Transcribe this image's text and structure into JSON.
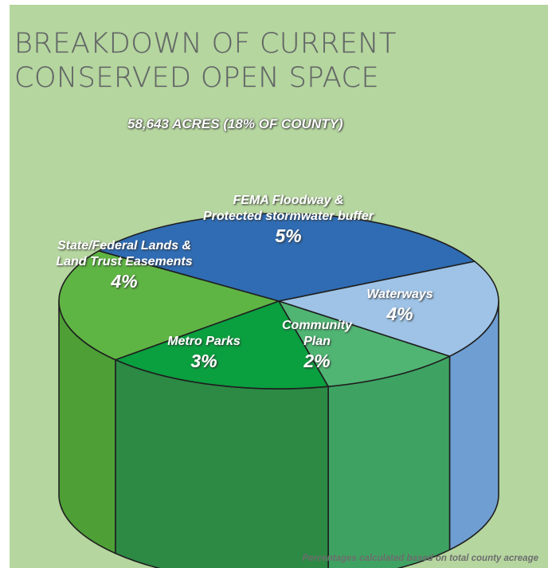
{
  "title_lines": [
    "BREAKDOWN OF CURRENT",
    "CONSERVED OPEN SPACE"
  ],
  "subtitle": "58,643 ACRES (18% OF COUNTY)",
  "footnote": "Percentages calculated based on total county acreage",
  "chart_data": {
    "type": "pie",
    "title": "BREAKDOWN OF CURRENT CONSERVED OPEN SPACE",
    "subtitle": "58,643 ACRES (18% OF COUNTY)",
    "unit": "%",
    "style": "3d-cylinder",
    "slices": [
      {
        "label": "FEMA Floodway & Protected stormwater buffer",
        "label_lines": [
          "FEMA Floodway &",
          "Protected stormwater buffer"
        ],
        "value": 5,
        "display": "5%",
        "color": "#2f6cb3",
        "side_color": "#2a5f9e"
      },
      {
        "label": "Waterways",
        "label_lines": [
          "Waterways"
        ],
        "value": 4,
        "display": "4%",
        "color": "#9ec3e6",
        "side_color": "#6f9ed2"
      },
      {
        "label": "Community Plan",
        "label_lines": [
          "Community",
          "Plan"
        ],
        "value": 2,
        "display": "2%",
        "color": "#50b573",
        "side_color": "#3ea362"
      },
      {
        "label": "Metro Parks",
        "label_lines": [
          "Metro Parks"
        ],
        "value": 3,
        "display": "3%",
        "color": "#0a9f3f",
        "side_color": "#2c8a45"
      },
      {
        "label": "State/Federal Lands & Land Trust Easements",
        "label_lines": [
          "State/Federal Lands &",
          "Land Trust Easements"
        ],
        "value": 4,
        "display": "4%",
        "color": "#5fb544",
        "side_color": "#4d9f36"
      }
    ]
  }
}
